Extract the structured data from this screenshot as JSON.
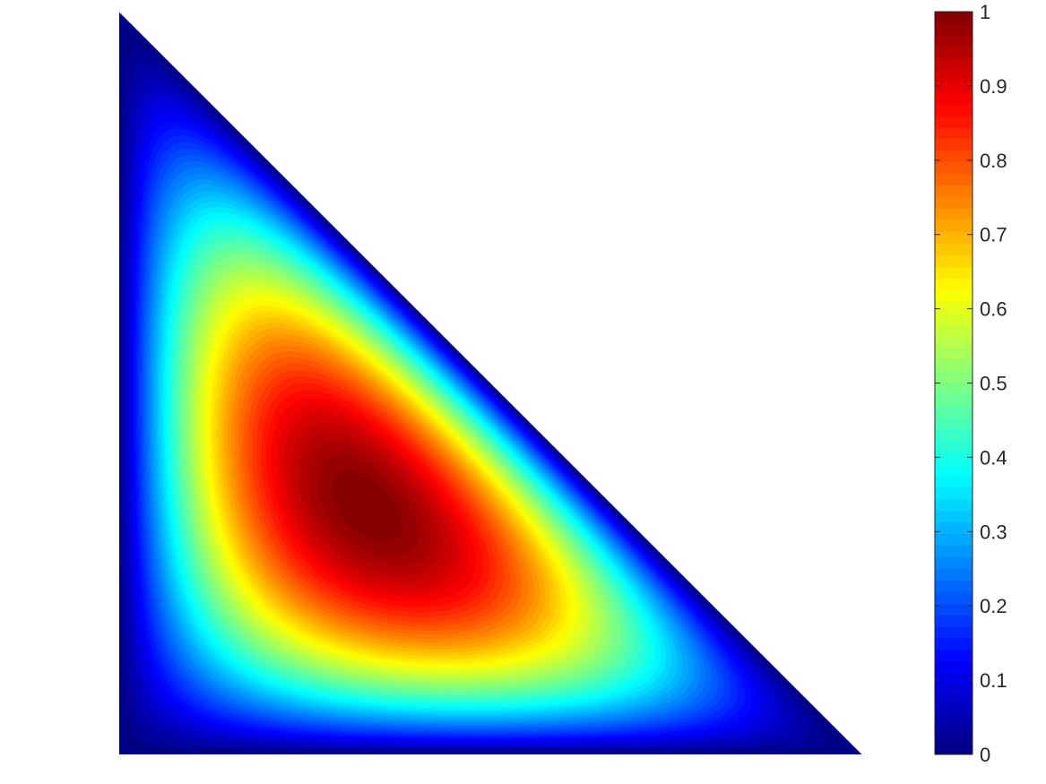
{
  "chart_data": {
    "type": "heatmap",
    "title": "",
    "xlabel": "",
    "ylabel": "",
    "domain": "right triangle with vertices (0,0), (1,0), (0,1)",
    "field": "normalized bubble function u = 27*x*y*(1-x-y), max 1 at centroid (1/3, 1/3), 0 on boundary",
    "peak": {
      "x": 0.3333,
      "y": 0.3333,
      "value": 1
    },
    "colormap": "jet",
    "color_levels": 64,
    "colorbar": {
      "position": "right",
      "ylim": [
        0,
        1
      ],
      "ticks": [
        0,
        0.1,
        0.2,
        0.3,
        0.4,
        0.5,
        0.6,
        0.7,
        0.8,
        0.9,
        1
      ],
      "tick_labels": [
        "0",
        "0.1",
        "0.2",
        "0.3",
        "0.4",
        "0.5",
        "0.6",
        "0.7",
        "0.8",
        "0.9",
        "1"
      ]
    },
    "axes_visible": false
  }
}
